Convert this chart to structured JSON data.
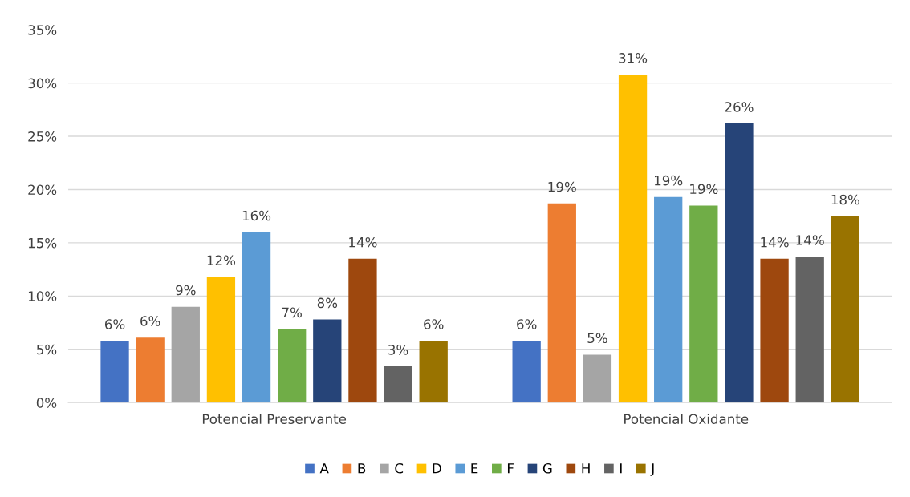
{
  "chart_data": {
    "type": "bar",
    "categories": [
      "Potencial Preservante",
      "Potencial Oxidante"
    ],
    "series": [
      {
        "name": "A",
        "color": "#4472c4",
        "values": [
          5.8,
          5.8
        ],
        "value_labels": [
          "6%",
          "6%"
        ]
      },
      {
        "name": "B",
        "color": "#ed7d31",
        "values": [
          6.1,
          18.7
        ],
        "value_labels": [
          "6%",
          "19%"
        ]
      },
      {
        "name": "C",
        "color": "#a5a5a5",
        "values": [
          9.0,
          4.5
        ],
        "value_labels": [
          "9%",
          "5%"
        ]
      },
      {
        "name": "D",
        "color": "#ffc000",
        "values": [
          11.8,
          30.8
        ],
        "value_labels": [
          "12%",
          "31%"
        ]
      },
      {
        "name": "E",
        "color": "#5b9bd5",
        "values": [
          16.0,
          19.3
        ],
        "value_labels": [
          "16%",
          "19%"
        ]
      },
      {
        "name": "F",
        "color": "#70ad47",
        "values": [
          6.9,
          18.5
        ],
        "value_labels": [
          "7%",
          "19%"
        ]
      },
      {
        "name": "G",
        "color": "#264478",
        "values": [
          7.8,
          26.2
        ],
        "value_labels": [
          "8%",
          "26%"
        ]
      },
      {
        "name": "H",
        "color": "#9e480e",
        "values": [
          13.5,
          13.5
        ],
        "value_labels": [
          "14%",
          "14%"
        ]
      },
      {
        "name": "I",
        "color": "#636363",
        "values": [
          3.4,
          13.7
        ],
        "value_labels": [
          "3%",
          "14%"
        ]
      },
      {
        "name": "J",
        "color": "#997300",
        "values": [
          5.8,
          17.5
        ],
        "value_labels": [
          "6%",
          "18%"
        ]
      }
    ],
    "ylim": [
      0,
      35
    ],
    "yticks": [
      {
        "value": 0,
        "label": "0%"
      },
      {
        "value": 5,
        "label": "5%"
      },
      {
        "value": 10,
        "label": "10%"
      },
      {
        "value": 15,
        "label": "15%"
      },
      {
        "value": 20,
        "label": "20%"
      },
      {
        "value": 25,
        "label": "25%"
      },
      {
        "value": 30,
        "label": "30%"
      },
      {
        "value": 35,
        "label": "35%"
      }
    ],
    "grid": "y",
    "legend": "bottom"
  }
}
